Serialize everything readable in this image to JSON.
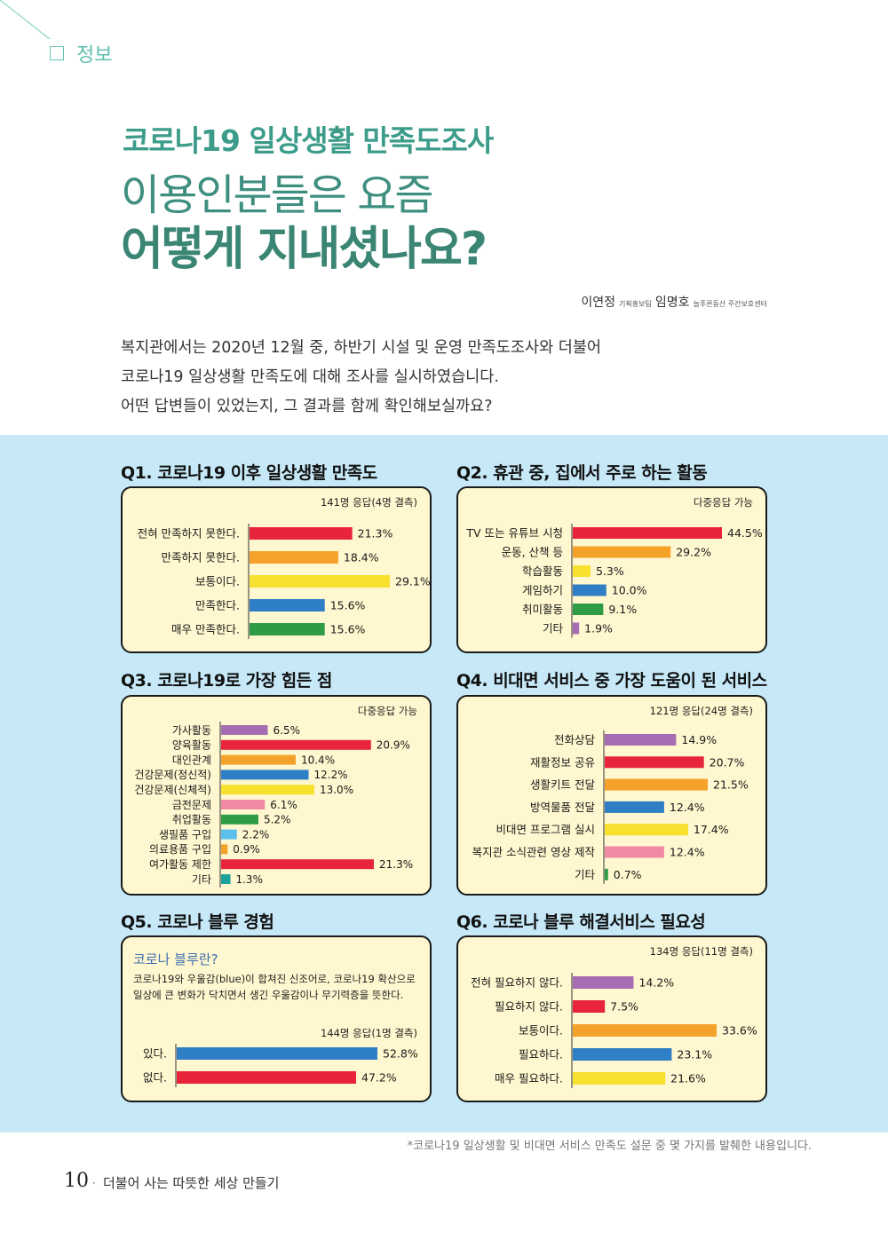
{
  "header": {
    "section": "정보",
    "title_line1": "코로나19 일상생활 만족도조사",
    "title_line2": "이용인분들은 요즘",
    "title_line3": "어떻게 지내셨나요?"
  },
  "authors": {
    "name1": "이연정",
    "role1": "기획홍보팀",
    "name2": "임명호",
    "role2": "늘푸른동산 주간보호센터"
  },
  "intro": {
    "line1": "복지관에서는 2020년 12월 중, 하반기 시설 및 운영 만족도조사와 더불어",
    "line2": "코로나19 일상생활 만족도에 대해 조사를 실시하였습니다.",
    "line3": "어떤 답변들이 있었는지, 그 결과를 함께 확인해보실까요?"
  },
  "colors": {
    "red": "#e8243a",
    "orange": "#f5a22a",
    "yellow": "#f7e12e",
    "blue": "#2f7fc6",
    "green": "#2f9c45",
    "purple": "#a66db2",
    "pink": "#f08aa4",
    "skyblue": "#5bc0eb",
    "teal": "#1aa39a",
    "panel_bg": "#fff7cf",
    "band_bg": "#c6e8f7",
    "title_teal": "#3a8574"
  },
  "questions": {
    "q1": {
      "title": "Q1. 코로나19 이후 일상생활 만족도",
      "note": "141명 응답(4명 결측)"
    },
    "q2": {
      "title": "Q2. 휴관 중, 집에서 주로 하는 활동",
      "note": "다중응답 가능"
    },
    "q3": {
      "title": "Q3. 코로나19로 가장 힘든 점",
      "note": "다중응답 가능"
    },
    "q4": {
      "title": "Q4. 비대면 서비스 중 가장 도움이 된 서비스",
      "note": "121명 응답(24명 결측)"
    },
    "q5": {
      "title": "Q5. 코로나 블루 경험",
      "note": "144명 응답(1명 결측)",
      "def_title": "코로나 블루란?",
      "def_text": "코로나19와 우울감(blue)이 합쳐진 신조어로, 코로나19 확산으로 일상에 큰 변화가 닥치면서 생긴 우울감이나 무기력증을 뜻한다."
    },
    "q6": {
      "title": "Q6. 코로나 블루 해결서비스 필요성",
      "note": "134명 응답(11명 결측)"
    }
  },
  "chart_data": [
    {
      "id": "q1",
      "type": "bar",
      "orientation": "horizontal",
      "title": "Q1. 코로나19 이후 일상생활 만족도",
      "unit": "%",
      "categories": [
        "전혀 만족하지 못한다.",
        "만족하지 못한다.",
        "보통이다.",
        "만족한다.",
        "매우 만족한다."
      ],
      "values": [
        21.3,
        18.4,
        29.1,
        15.6,
        15.6
      ],
      "labels": [
        "21.3%",
        "18.4%",
        "29.1%",
        "15.6%",
        "15.6%"
      ],
      "colors": [
        "red",
        "orange",
        "yellow",
        "blue",
        "green"
      ],
      "max": 29.1
    },
    {
      "id": "q2",
      "type": "bar",
      "orientation": "horizontal",
      "title": "Q2. 휴관 중, 집에서 주로 하는 활동",
      "unit": "%",
      "categories": [
        "TV 또는 유튜브 시청",
        "운동, 산책 등",
        "학습활동",
        "게임하기",
        "취미활동",
        "기타"
      ],
      "values": [
        44.5,
        29.2,
        5.3,
        10.0,
        9.1,
        1.9
      ],
      "labels": [
        "44.5%",
        "29.2%",
        "5.3%",
        "10.0%",
        "9.1%",
        "1.9%"
      ],
      "colors": [
        "red",
        "orange",
        "yellow",
        "blue",
        "green",
        "purple"
      ],
      "max": 44.5
    },
    {
      "id": "q3",
      "type": "bar",
      "orientation": "horizontal",
      "title": "Q3. 코로나19로 가장 힘든 점",
      "unit": "%",
      "categories": [
        "가사활동",
        "양육활동",
        "대인관계",
        "건강문제(정신적)",
        "건강문제(신체적)",
        "금전문제",
        "취업활동",
        "생필품 구입",
        "의료용품 구입",
        "여가활동 제한",
        "기타"
      ],
      "values": [
        6.5,
        20.9,
        10.4,
        12.2,
        13.0,
        6.1,
        5.2,
        2.2,
        0.9,
        21.3,
        1.3
      ],
      "labels": [
        "6.5%",
        "20.9%",
        "10.4%",
        "12.2%",
        "13.0%",
        "6.1%",
        "5.2%",
        "2.2%",
        "0.9%",
        "21.3%",
        "1.3%"
      ],
      "colors": [
        "purple",
        "red",
        "orange",
        "blue",
        "yellow",
        "pink",
        "green",
        "skyblue",
        "orange",
        "red",
        "teal"
      ],
      "max": 21.3
    },
    {
      "id": "q4",
      "type": "bar",
      "orientation": "horizontal",
      "title": "Q4. 비대면 서비스 중 가장 도움이 된 서비스",
      "unit": "%",
      "categories": [
        "전화상담",
        "재활정보 공유",
        "생활키트 전달",
        "방역물품 전달",
        "비대면 프로그램 실시",
        "복지관 소식관련 영상 제작",
        "기타"
      ],
      "values": [
        14.9,
        20.7,
        21.5,
        12.4,
        17.4,
        12.4,
        0.7
      ],
      "labels": [
        "14.9%",
        "20.7%",
        "21.5%",
        "12.4%",
        "17.4%",
        "12.4%",
        "0.7%"
      ],
      "colors": [
        "purple",
        "red",
        "orange",
        "blue",
        "yellow",
        "pink",
        "green"
      ],
      "max": 21.5
    },
    {
      "id": "q5",
      "type": "bar",
      "orientation": "horizontal",
      "title": "Q5. 코로나 블루 경험",
      "unit": "%",
      "categories": [
        "있다.",
        "없다."
      ],
      "values": [
        52.8,
        47.2
      ],
      "labels": [
        "52.8%",
        "47.2%"
      ],
      "colors": [
        "blue",
        "red"
      ],
      "max": 52.8
    },
    {
      "id": "q6",
      "type": "bar",
      "orientation": "horizontal",
      "title": "Q6. 코로나 블루 해결서비스 필요성",
      "unit": "%",
      "categories": [
        "전혀 필요하지 않다.",
        "필요하지 않다.",
        "보통이다.",
        "필요하다.",
        "매우 필요하다."
      ],
      "values": [
        14.2,
        7.5,
        33.6,
        23.1,
        21.6
      ],
      "labels": [
        "14.2%",
        "7.5%",
        "33.6%",
        "23.1%",
        "21.6%"
      ],
      "colors": [
        "purple",
        "red",
        "orange",
        "blue",
        "yellow"
      ],
      "max": 33.6
    }
  ],
  "footer": {
    "footnote": "*코로나19 일상생활 및 비대면 서비스 만족도 설문 중 몇 가지를 발췌한 내용입니다.",
    "page_number": "10",
    "separator": "·",
    "page_title": "더불어 사는 따뜻한 세상 만들기"
  }
}
